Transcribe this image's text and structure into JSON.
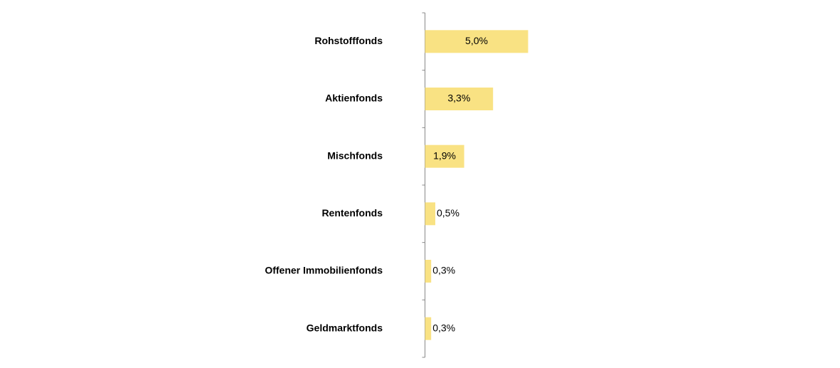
{
  "chart_data": {
    "type": "hbar",
    "categories": [
      "Rohstofffonds",
      "Aktienfonds",
      "Mischfonds",
      "Rentenfonds",
      "Offener Immobilienfonds",
      "Geldmarktfonds"
    ],
    "values": [
      5.0,
      3.3,
      1.9,
      0.5,
      0.3,
      0.3
    ],
    "value_labels": [
      "5,0%",
      "3,3%",
      "1,9%",
      "0,5%",
      "0,3%",
      "0,3%"
    ],
    "color": "#f9e283"
  }
}
